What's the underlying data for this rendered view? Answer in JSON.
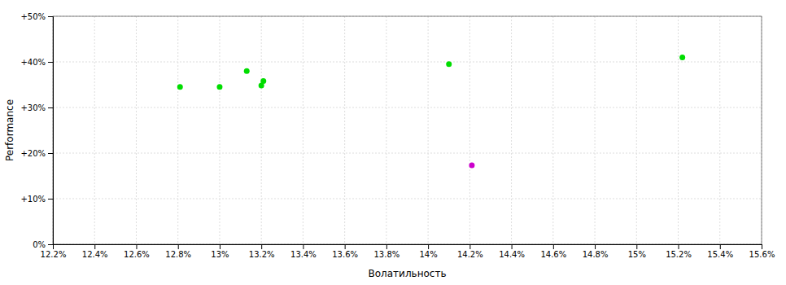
{
  "chart_data": {
    "type": "scatter",
    "xlabel": "Волатильность",
    "ylabel": "Performance",
    "xlim": [
      0.122,
      0.156
    ],
    "ylim": [
      0.0,
      0.5
    ],
    "xticks": [
      {
        "value": 0.122,
        "label": "12.2%"
      },
      {
        "value": 0.124,
        "label": "12.4%"
      },
      {
        "value": 0.126,
        "label": "12.6%"
      },
      {
        "value": 0.128,
        "label": "12.8%"
      },
      {
        "value": 0.13,
        "label": "13%"
      },
      {
        "value": 0.132,
        "label": "13.2%"
      },
      {
        "value": 0.134,
        "label": "13.4%"
      },
      {
        "value": 0.136,
        "label": "13.6%"
      },
      {
        "value": 0.138,
        "label": "13.8%"
      },
      {
        "value": 0.14,
        "label": "14%"
      },
      {
        "value": 0.142,
        "label": "14.2%"
      },
      {
        "value": 0.144,
        "label": "14.4%"
      },
      {
        "value": 0.146,
        "label": "14.6%"
      },
      {
        "value": 0.148,
        "label": "14.8%"
      },
      {
        "value": 0.15,
        "label": "15%"
      },
      {
        "value": 0.152,
        "label": "15.2%"
      },
      {
        "value": 0.154,
        "label": "15.4%"
      },
      {
        "value": 0.156,
        "label": "15.6%"
      }
    ],
    "yticks": [
      {
        "value": 0.0,
        "label": "0%"
      },
      {
        "value": 0.1,
        "label": "+10%"
      },
      {
        "value": 0.2,
        "label": "+20%"
      },
      {
        "value": 0.3,
        "label": "+30%"
      },
      {
        "value": 0.4,
        "label": "+40%"
      },
      {
        "value": 0.5,
        "label": "+50%"
      }
    ],
    "grid": true,
    "series": [
      {
        "color": "#00dd00",
        "x": [
          0.1281,
          0.13,
          0.1313,
          0.132,
          0.1321,
          0.141,
          0.1522
        ],
        "values": [
          0.345,
          0.345,
          0.38,
          0.348,
          0.358,
          0.395,
          0.41
        ]
      },
      {
        "color": "#cc00cc",
        "x": [
          0.1421
        ],
        "values": [
          0.173
        ]
      }
    ]
  }
}
